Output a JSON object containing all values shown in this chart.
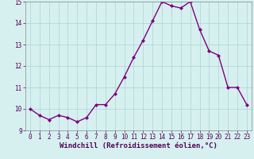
{
  "x": [
    0,
    1,
    2,
    3,
    4,
    5,
    6,
    7,
    8,
    9,
    10,
    11,
    12,
    13,
    14,
    15,
    16,
    17,
    18,
    19,
    20,
    21,
    22,
    23
  ],
  "y": [
    10.0,
    9.7,
    9.5,
    9.7,
    9.6,
    9.4,
    9.6,
    10.2,
    10.2,
    10.7,
    11.5,
    12.4,
    13.2,
    14.1,
    15.0,
    14.8,
    14.7,
    15.0,
    13.7,
    12.7,
    12.5,
    11.0,
    11.0,
    10.2
  ],
  "line_color": "#800080",
  "marker": "D",
  "marker_size": 2,
  "bg_color": "#d6f0f0",
  "grid_color": "#b0d8d8",
  "xlabel": "Windchill (Refroidissement éolien,°C)",
  "ylim": [
    9,
    15
  ],
  "xlim_min": -0.5,
  "xlim_max": 23.5,
  "yticks": [
    9,
    10,
    11,
    12,
    13,
    14,
    15
  ],
  "xticks": [
    0,
    1,
    2,
    3,
    4,
    5,
    6,
    7,
    8,
    9,
    10,
    11,
    12,
    13,
    14,
    15,
    16,
    17,
    18,
    19,
    20,
    21,
    22,
    23
  ],
  "tick_labelsize": 5.5,
  "xlabel_fontsize": 6.5,
  "line_width": 1.0,
  "spine_color": "#888888"
}
